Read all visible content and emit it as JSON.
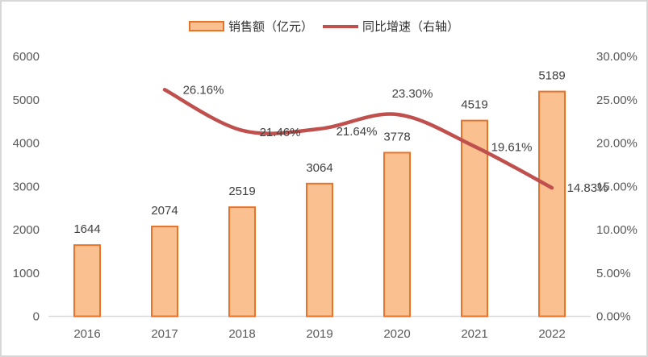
{
  "legend": {
    "items": [
      {
        "label": "销售额（亿元）",
        "swatch": "bar"
      },
      {
        "label": "同比增速（右轴）",
        "swatch": "line"
      }
    ]
  },
  "colors": {
    "bar_fill": "#FAC090",
    "bar_border": "#E8732A",
    "line": "#C0504D",
    "axis_text": "#595959",
    "data_label": "#404040",
    "axis_line": "#D9D9D9"
  },
  "chart_data": {
    "type": "combo",
    "title": "",
    "categories": [
      "2016",
      "2017",
      "2018",
      "2019",
      "2020",
      "2021",
      "2022"
    ],
    "series": [
      {
        "name": "销售额（亿元）",
        "type": "bar",
        "axis": "left",
        "values": [
          1644,
          2074,
          2519,
          3064,
          3778,
          4519,
          5189
        ],
        "labels": [
          "1644",
          "2074",
          "2519",
          "3064",
          "3778",
          "4519",
          "5189"
        ]
      },
      {
        "name": "同比增速（右轴）",
        "type": "line",
        "axis": "right",
        "smooth": true,
        "values": [
          null,
          26.16,
          21.46,
          21.64,
          23.3,
          19.61,
          14.83
        ],
        "labels": [
          null,
          "26.16%",
          "21.46%",
          "21.64%",
          "23.30%",
          "19.61%",
          "14.83%"
        ],
        "label_offsets": [
          null,
          [
            48,
            0
          ],
          [
            47,
            2
          ],
          [
            46,
            3
          ],
          [
            19,
            -26
          ],
          [
            46,
            1
          ],
          [
            44,
            0
          ]
        ]
      }
    ],
    "left_axis": {
      "min": 0,
      "max": 6000,
      "step": 1000,
      "ticks": [
        "0",
        "1000",
        "2000",
        "3000",
        "4000",
        "5000",
        "6000"
      ]
    },
    "right_axis": {
      "min": 0,
      "max": 30,
      "step": 5,
      "ticks": [
        "0.00%",
        "5.00%",
        "10.00%",
        "15.00%",
        "20.00%",
        "25.00%",
        "30.00%"
      ]
    },
    "grid": false,
    "legend_position": "top"
  }
}
